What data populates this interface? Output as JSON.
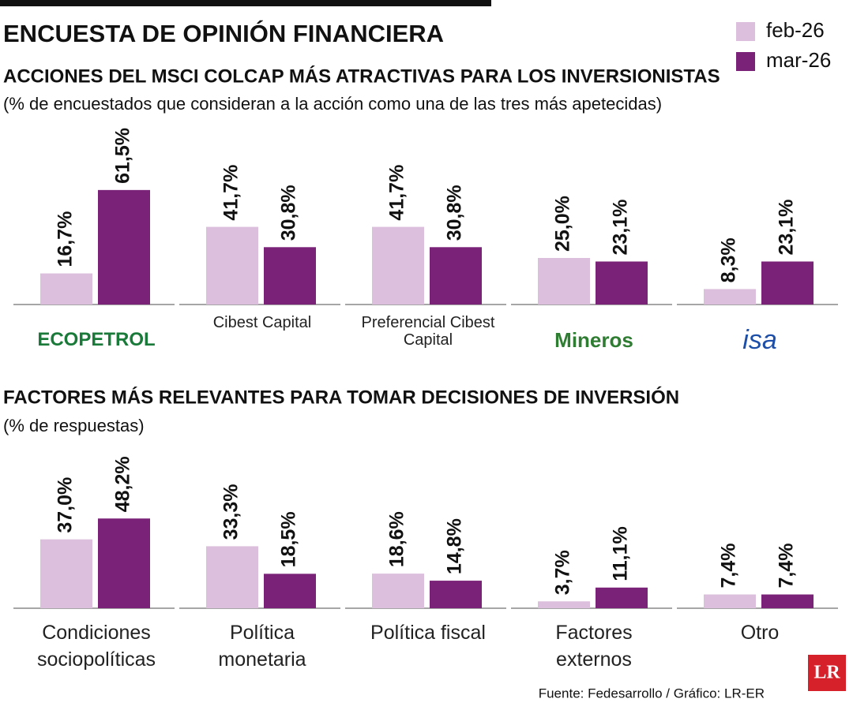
{
  "header": {
    "title": "ENCUESTA DE OPINIÓN FINANCIERA",
    "source": "Fuente: Fedesarrollo / Gráfico: LR-ER",
    "brand": "LR"
  },
  "chart_data": [
    {
      "type": "bar",
      "title": "ACCIONES DEL MSCI COLCAP MÁS ATRACTIVAS PARA LOS INVERSIONISTAS",
      "subtitle": "(% de encuestados que consideran a la acción como una de las tres más apetecidas)",
      "categories": [
        "ECOPETROL",
        "Cibest Capital",
        "Preferencial Cibest Capital",
        "Mineros",
        "isa"
      ],
      "series": [
        {
          "name": "feb-26",
          "color": "#dcbfdc",
          "values": [
            16.7,
            41.7,
            41.7,
            25.0,
            8.3
          ],
          "value_labels": [
            "16,7%",
            "41,7%",
            "41,7%",
            "25,0%",
            "8,3%"
          ]
        },
        {
          "name": "mar-26",
          "color": "#7a2277",
          "values": [
            61.5,
            30.8,
            30.8,
            23.1,
            23.1
          ],
          "value_labels": [
            "61,5%",
            "30,8%",
            "30,8%",
            "23,1%",
            "23,1%"
          ]
        }
      ]
    },
    {
      "type": "bar",
      "title": "FACTORES MÁS RELEVANTES PARA TOMAR DECISIONES DE INVERSIÓN",
      "subtitle": "(% de respuestas)",
      "categories": [
        "Condiciones sociopolíticas",
        "Política monetaria",
        "Política fiscal",
        "Factores externos",
        "Otro"
      ],
      "series": [
        {
          "color": "#dcbfdc",
          "values": [
            37.0,
            33.3,
            18.6,
            3.7,
            7.4
          ],
          "value_labels": [
            "37,0%",
            "33,3%",
            "18,6%",
            "3,7%",
            "7,4%"
          ]
        },
        {
          "color": "#7a2277",
          "values": [
            48.2,
            18.5,
            14.8,
            11.1,
            7.4
          ],
          "value_labels": [
            "48,2%",
            "18,5%",
            "14,8%",
            "11,1%",
            "7,4%"
          ]
        }
      ]
    }
  ]
}
